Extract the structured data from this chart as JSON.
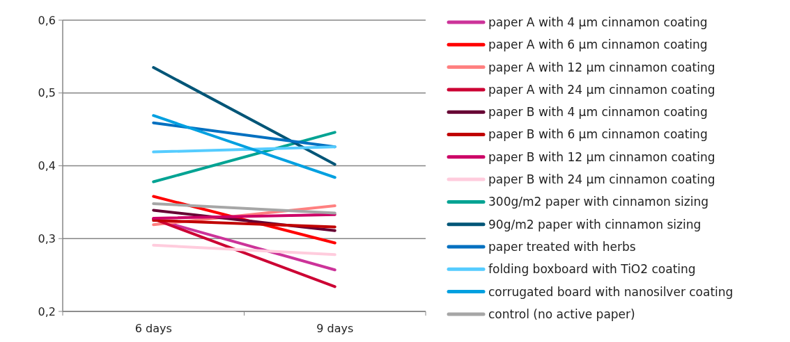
{
  "chart_data": {
    "type": "line",
    "categories": [
      "6 days",
      "9 days"
    ],
    "ylim": [
      0.2,
      0.6
    ],
    "yticks": [
      {
        "value": 0.2,
        "label": "0,2"
      },
      {
        "value": 0.3,
        "label": "0,3"
      },
      {
        "value": 0.4,
        "label": "0,4"
      },
      {
        "value": 0.5,
        "label": "0,5"
      },
      {
        "value": 0.6,
        "label": "0,6"
      }
    ],
    "grid": "y",
    "legend": "right",
    "marker": "none",
    "line_style": "solid",
    "series": [
      {
        "name": "paper A with 4 µm cinnamon coating",
        "color": "#cc3399",
        "values": [
          0.327,
          0.257
        ]
      },
      {
        "name": "paper A with 6 µm cinnamon coating",
        "color": "#ff0000",
        "values": [
          0.358,
          0.294
        ]
      },
      {
        "name": "paper A with 12 µm cinnamon coating",
        "color": "#ff8080",
        "values": [
          0.319,
          0.345
        ]
      },
      {
        "name": "paper A with 24 µm cinnamon coating",
        "color": "#cc0033",
        "values": [
          0.327,
          0.234
        ]
      },
      {
        "name": "paper B with 4 µm cinnamon coating",
        "color": "#660033",
        "values": [
          0.339,
          0.311
        ]
      },
      {
        "name": "paper B with 6 µm cinnamon coating",
        "color": "#c00000",
        "values": [
          0.325,
          0.316
        ]
      },
      {
        "name": "paper B with 12 µm cinnamon coating",
        "color": "#cc0066",
        "values": [
          0.328,
          0.333
        ]
      },
      {
        "name": "paper B with 24 µm cinnamon coating",
        "color": "#ffccdd",
        "values": [
          0.291,
          0.278
        ]
      },
      {
        "name": "300g/m2 paper with cinnamon sizing",
        "color": "#00a393",
        "values": [
          0.378,
          0.446
        ]
      },
      {
        "name": "90g/m2 paper with cinnamon sizing",
        "color": "#005577",
        "values": [
          0.535,
          0.402
        ]
      },
      {
        "name": "paper treated with herbs",
        "color": "#0070c0",
        "values": [
          0.459,
          0.426
        ]
      },
      {
        "name": "folding boxboard with TiO2 coating",
        "color": "#55ccff",
        "values": [
          0.419,
          0.426
        ]
      },
      {
        "name": "corrugated board with nanosilver coating",
        "color": "#00a0e0",
        "values": [
          0.469,
          0.384
        ]
      },
      {
        "name": "control (no active paper)",
        "color": "#a6a6a6",
        "values": [
          0.348,
          0.335
        ]
      }
    ]
  }
}
